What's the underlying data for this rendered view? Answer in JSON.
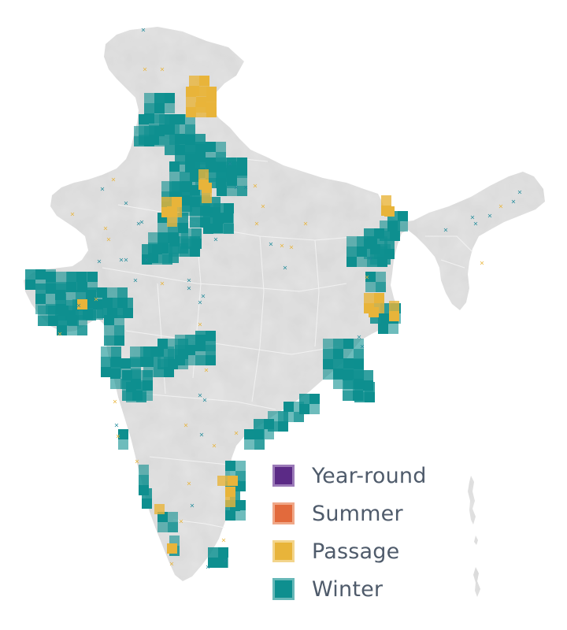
{
  "map": {
    "land_color": "#e2e2e2",
    "border_color": "#ffffff",
    "legend": [
      {
        "label": "Year-round",
        "color": "#5b2a86",
        "edge": "#9b7ab8"
      },
      {
        "label": "Summer",
        "color": "#e26a3c",
        "edge": "#f0a888"
      },
      {
        "label": "Passage",
        "color": "#e8b43a",
        "edge": "#f3d58c"
      },
      {
        "label": "Winter",
        "color": "#0e8f8f",
        "edge": "#67b8b8"
      }
    ],
    "records": {
      "passage_marker_color": "#e8b43a",
      "winter_marker_color": "#1f8a9a",
      "marker_symbol": "x"
    }
  }
}
